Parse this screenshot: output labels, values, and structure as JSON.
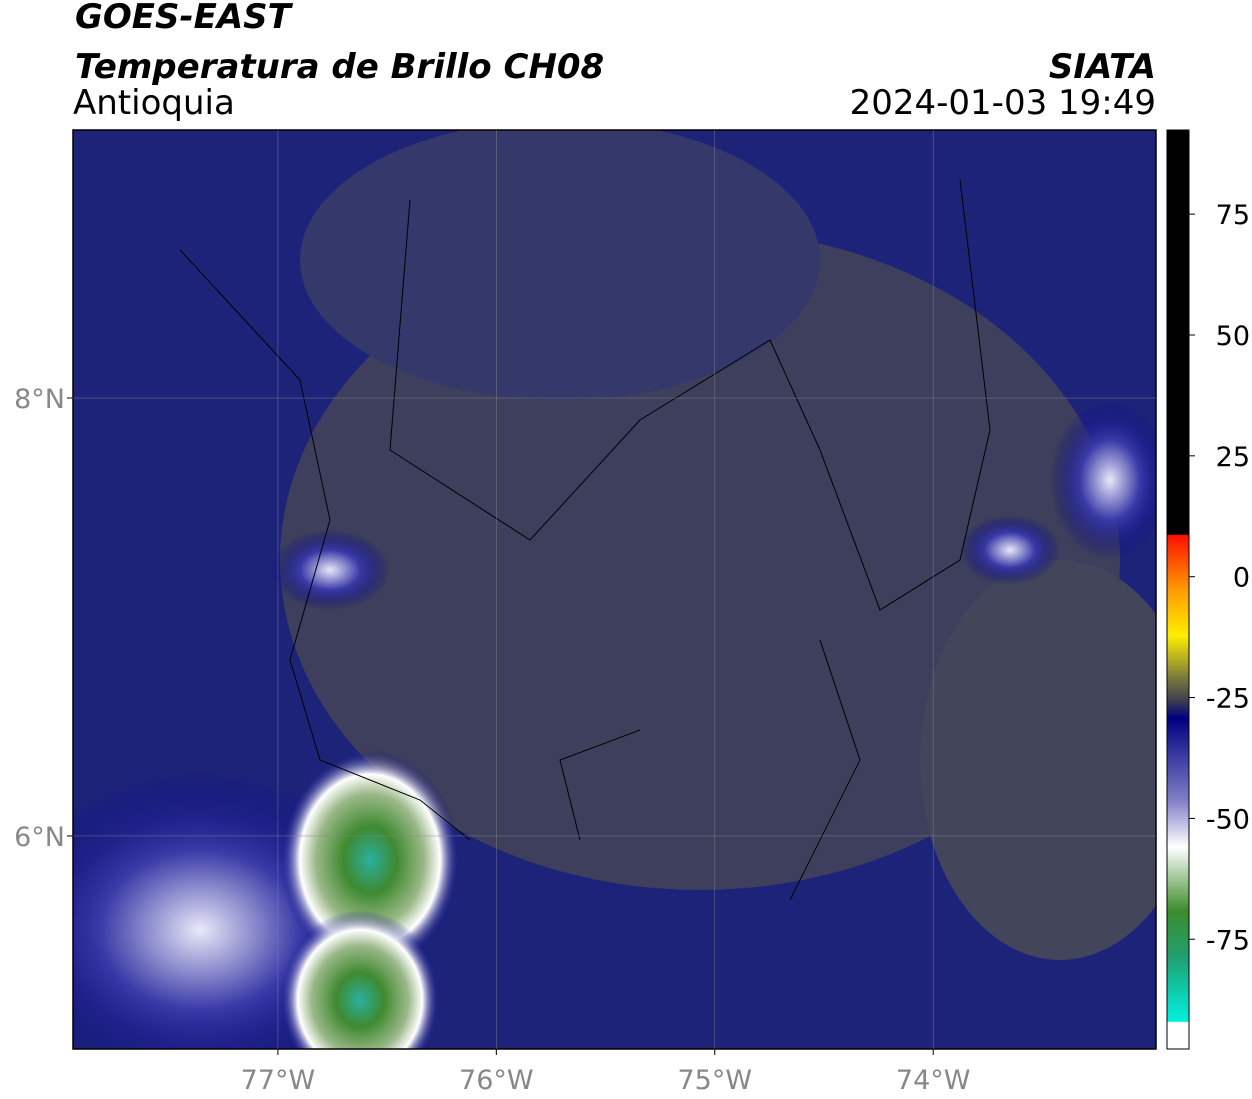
{
  "header": {
    "title": "GOES-EAST",
    "subtitle": "Temperatura de Brillo CH08",
    "region": "Antioquia",
    "source": "SIATA",
    "datetime": "2024-01-03 19:49"
  },
  "map": {
    "xlim": [
      -77.938,
      -72.98
    ],
    "ylim": [
      5.027,
      9.224
    ],
    "xticks": [
      {
        "value": -77,
        "label": "77°W"
      },
      {
        "value": -76,
        "label": "76°W"
      },
      {
        "value": -75,
        "label": "75°W"
      },
      {
        "value": -74,
        "label": "74°W"
      }
    ],
    "yticks": [
      {
        "value": 6,
        "label": "6°N"
      },
      {
        "value": 8,
        "label": "8°N"
      }
    ],
    "grid": true
  },
  "colorbar": {
    "clim": [
      -97.7,
      92.4
    ],
    "ticks": [
      75,
      50,
      25,
      0,
      -25,
      -50,
      -75
    ]
  }
}
